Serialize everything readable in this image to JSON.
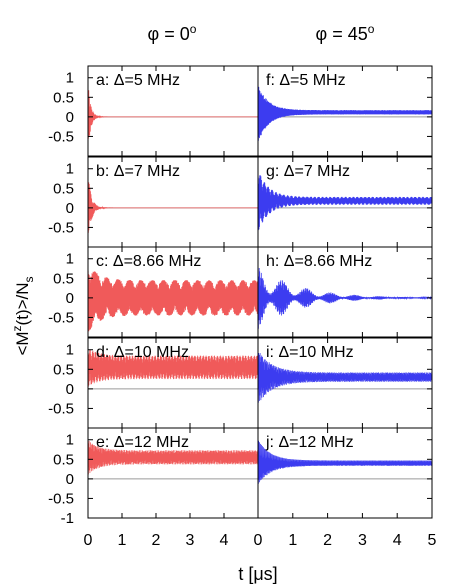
{
  "figure": {
    "column_headers": [
      "φ = 0°",
      "φ = 45°"
    ],
    "ylabel": "<M^z(t)>/N_s",
    "xlabel": "t [μs]"
  },
  "colors": {
    "left": "#f05a5a",
    "right": "#3c3cf0",
    "zero_line": "#9a9a9a",
    "axis": "#000000"
  },
  "chart_data": [
    {
      "type": "line",
      "column": "φ = 0°",
      "rows": [
        "Δ=5 MHz",
        "Δ=7 MHz",
        "Δ=8.66 MHz",
        "Δ=10 MHz",
        "Δ=12 MHz"
      ],
      "panels": [
        {
          "label": "a: Δ=5 MHz",
          "osc_center": 0.0,
          "osc_amplitude_t0": 0.9,
          "decay_time_us": 0.08,
          "residual_amplitude": 0.0
        },
        {
          "label": "b: Δ=7 MHz",
          "osc_center": 0.0,
          "osc_amplitude_t0": 0.9,
          "decay_time_us": 0.1,
          "residual_amplitude": 0.0
        },
        {
          "label": "c: Δ=8.66 MHz",
          "osc_center": 0.0,
          "osc_amplitude_t0": 0.9,
          "decay_time_us": 0.3,
          "residual_amplitude": 0.45
        },
        {
          "label": "d: Δ=10 MHz",
          "osc_center": 0.55,
          "osc_amplitude_t0": 0.5,
          "decay_time_us": 0.3,
          "residual_amplitude": 0.3
        },
        {
          "label": "e: Δ=12 MHz",
          "osc_center": 0.55,
          "osc_amplitude_t0": 0.45,
          "decay_time_us": 0.3,
          "residual_amplitude": 0.18
        }
      ],
      "xlim": [
        0,
        5
      ],
      "xticks": [
        0,
        1,
        2,
        3,
        4
      ],
      "series": [
        {
          "values": []
        }
      ]
    },
    {
      "type": "line",
      "column": "φ = 45°",
      "rows": [
        "Δ=5 MHz",
        "Δ=7 MHz",
        "Δ=8.66 MHz",
        "Δ=10 MHz",
        "Δ=12 MHz"
      ],
      "panels": [
        {
          "label": "f: Δ=5 MHz",
          "osc_center": 0.12,
          "osc_amplitude_t0": 0.8,
          "decay_time_us": 0.3,
          "residual_amplitude": 0.06
        },
        {
          "label": "g: Δ=7 MHz",
          "osc_center": 0.18,
          "osc_amplitude_t0": 0.8,
          "decay_time_us": 0.3,
          "residual_amplitude": 0.1
        },
        {
          "label": "h: Δ=8.66 MHz",
          "osc_center": 0.0,
          "osc_amplitude_t0": 0.8,
          "decay_time_us": 1.2,
          "residual_amplitude": 0.0
        },
        {
          "label": "i: Δ=10 MHz",
          "osc_center": 0.3,
          "osc_amplitude_t0": 0.7,
          "decay_time_us": 0.4,
          "residual_amplitude": 0.12
        },
        {
          "label": "j: Δ=12 MHz",
          "osc_center": 0.4,
          "osc_amplitude_t0": 0.6,
          "decay_time_us": 0.35,
          "residual_amplitude": 0.07
        }
      ],
      "xlim": [
        0,
        5
      ],
      "xticks": [
        0,
        1,
        2,
        3,
        4,
        5
      ],
      "series": [
        {
          "values": []
        }
      ]
    }
  ],
  "yticks_upper": [
    "1",
    "0.5",
    "0",
    "-0.5"
  ],
  "yticks_lower": [
    "1",
    "0.5",
    "0",
    "-0.5",
    "-1"
  ],
  "ylim": [
    -1,
    1.3
  ]
}
